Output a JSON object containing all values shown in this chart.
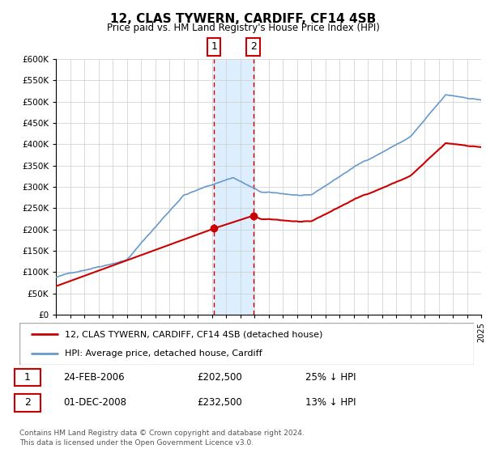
{
  "title": "12, CLAS TYWERN, CARDIFF, CF14 4SB",
  "subtitle": "Price paid vs. HM Land Registry's House Price Index (HPI)",
  "ylim": [
    0,
    600000
  ],
  "yticks": [
    0,
    50000,
    100000,
    150000,
    200000,
    250000,
    300000,
    350000,
    400000,
    450000,
    500000,
    550000,
    600000
  ],
  "ytick_labels": [
    "£0",
    "£50K",
    "£100K",
    "£150K",
    "£200K",
    "£250K",
    "£300K",
    "£350K",
    "£400K",
    "£450K",
    "£500K",
    "£550K",
    "£600K"
  ],
  "hpi_color": "#6699cc",
  "price_color": "#cc0000",
  "transaction1_date": 2006.15,
  "transaction1_price": 202500,
  "transaction2_date": 2008.92,
  "transaction2_price": 232500,
  "shade_color": "#ddeeff",
  "vline_color": "#cc0000",
  "legend_label1": "12, CLAS TYWERN, CARDIFF, CF14 4SB (detached house)",
  "legend_label2": "HPI: Average price, detached house, Cardiff",
  "table_row1_num": "1",
  "table_row1_date": "24-FEB-2006",
  "table_row1_price": "£202,500",
  "table_row1_pct": "25% ↓ HPI",
  "table_row2_num": "2",
  "table_row2_date": "01-DEC-2008",
  "table_row2_price": "£232,500",
  "table_row2_pct": "13% ↓ HPI",
  "footer_line1": "Contains HM Land Registry data © Crown copyright and database right 2024.",
  "footer_line2": "This data is licensed under the Open Government Licence v3.0.",
  "xmin": 1995,
  "xmax": 2025
}
